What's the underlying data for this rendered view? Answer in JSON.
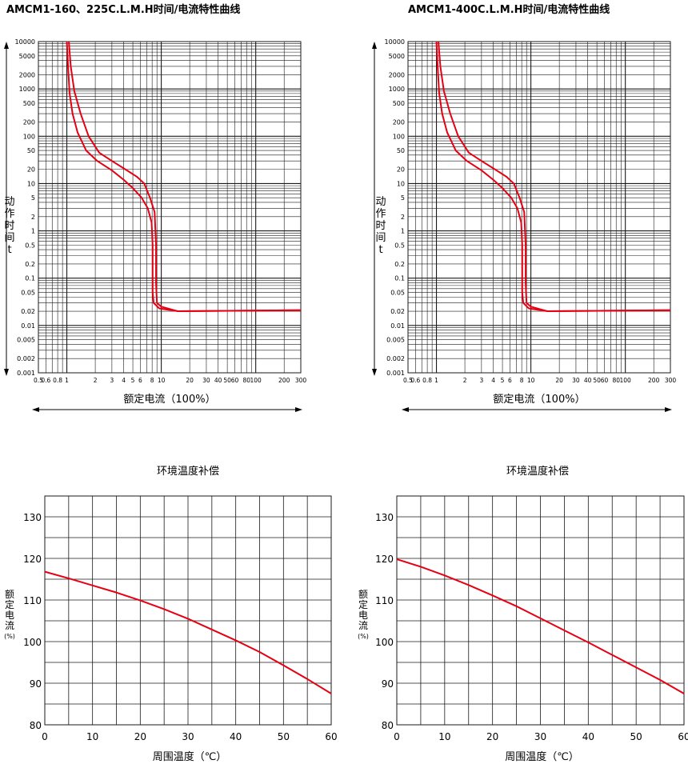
{
  "chart_data": [
    {
      "type": "line",
      "title": "AMCM1-160、225C.L.M.H时间/电流特性曲线",
      "xlabel": "额定电流（100%）",
      "ylabel": "动作时间t",
      "xscale": "log",
      "yscale": "log",
      "xlim": [
        0.5,
        300
      ],
      "ylim": [
        0.001,
        10000
      ],
      "x_ticks": [
        "0.5",
        "0.6",
        "0.8",
        "1",
        "2",
        "3",
        "4",
        "5",
        "6",
        "8",
        "10",
        "20",
        "30",
        "40",
        "50",
        "60",
        "80",
        "100",
        "200",
        "300"
      ],
      "y_ticks": [
        "10000",
        "5000",
        "2000",
        "1000",
        "500",
        "200",
        "100",
        "50",
        "20",
        "10",
        "5",
        "2",
        "1",
        "0.5",
        "0.2",
        "0.1",
        "0.05",
        "0.02",
        "0.01",
        "0.005",
        "0.002",
        "0.001"
      ],
      "grid": true,
      "series": [
        {
          "values": [
            [
              1.05,
              10000
            ],
            [
              1.1,
              3000
            ],
            [
              1.2,
              900
            ],
            [
              1.4,
              300
            ],
            [
              1.7,
              100
            ],
            [
              2.2,
              45
            ],
            [
              3,
              30
            ],
            [
              4,
              21
            ],
            [
              5.5,
              14
            ],
            [
              6.6,
              10
            ],
            [
              7.6,
              5
            ],
            [
              8.5,
              2.5
            ],
            [
              8.8,
              0.5
            ],
            [
              8.8,
              0.08
            ],
            [
              9,
              0.03
            ],
            [
              10,
              0.025
            ],
            [
              15,
              0.02
            ],
            [
              300,
              0.021
            ]
          ]
        },
        {
          "values": [
            [
              1,
              10000
            ],
            [
              1.03,
              3000
            ],
            [
              1.07,
              800
            ],
            [
              1.15,
              300
            ],
            [
              1.3,
              120
            ],
            [
              1.6,
              50
            ],
            [
              2.1,
              30
            ],
            [
              3,
              19
            ],
            [
              4,
              12
            ],
            [
              5,
              8
            ],
            [
              6.2,
              5
            ],
            [
              7.2,
              3
            ],
            [
              7.9,
              1.5
            ],
            [
              8.1,
              0.5
            ],
            [
              8.1,
              0.05
            ],
            [
              8.3,
              0.03
            ],
            [
              9.5,
              0.023
            ],
            [
              15,
              0.02
            ],
            [
              300,
              0.021
            ]
          ]
        }
      ],
      "curve_color": "#e60012"
    },
    {
      "type": "line",
      "title": "AMCM1-400C.L.M.H时间/电流特性曲线",
      "xlabel": "额定电流（100%）",
      "ylabel": "动作时间t",
      "xscale": "log",
      "yscale": "log",
      "xlim": [
        0.5,
        300
      ],
      "ylim": [
        0.001,
        10000
      ],
      "x_ticks": [
        "0.5",
        "0.6",
        "0.8",
        "1",
        "2",
        "3",
        "4",
        "5",
        "6",
        "8",
        "10",
        "20",
        "30",
        "40",
        "50",
        "60",
        "80",
        "100",
        "200",
        "300"
      ],
      "y_ticks": [
        "10000",
        "5000",
        "2000",
        "1000",
        "500",
        "200",
        "100",
        "50",
        "20",
        "10",
        "5",
        "2",
        "1",
        "0.5",
        "0.2",
        "0.1",
        "0.05",
        "0.02",
        "0.01",
        "0.005",
        "0.002",
        "0.001"
      ],
      "grid": true,
      "series": [
        {
          "values": [
            [
              1.05,
              10000
            ],
            [
              1.1,
              3000
            ],
            [
              1.2,
              900
            ],
            [
              1.4,
              300
            ],
            [
              1.7,
              100
            ],
            [
              2.2,
              45
            ],
            [
              3,
              30
            ],
            [
              4,
              21
            ],
            [
              5.5,
              14
            ],
            [
              6.6,
              10
            ],
            [
              7.6,
              5
            ],
            [
              8.5,
              2.5
            ],
            [
              8.8,
              0.5
            ],
            [
              8.8,
              0.08
            ],
            [
              9,
              0.03
            ],
            [
              10,
              0.025
            ],
            [
              15,
              0.02
            ],
            [
              300,
              0.021
            ]
          ]
        },
        {
          "values": [
            [
              1,
              10000
            ],
            [
              1.03,
              3000
            ],
            [
              1.07,
              800
            ],
            [
              1.15,
              300
            ],
            [
              1.3,
              120
            ],
            [
              1.6,
              50
            ],
            [
              2.1,
              30
            ],
            [
              3,
              19
            ],
            [
              4,
              12
            ],
            [
              5,
              8
            ],
            [
              6.2,
              5
            ],
            [
              7.2,
              3
            ],
            [
              7.9,
              1.5
            ],
            [
              8.1,
              0.5
            ],
            [
              8.1,
              0.05
            ],
            [
              8.3,
              0.03
            ],
            [
              9.5,
              0.023
            ],
            [
              15,
              0.02
            ],
            [
              300,
              0.021
            ]
          ]
        }
      ],
      "curve_color": "#e60012"
    },
    {
      "type": "line",
      "title": "环境温度补偿",
      "xlabel": "周围温度（℃）",
      "ylabel": "额定电流(%)",
      "xlim": [
        0,
        60
      ],
      "ylim": [
        80,
        135
      ],
      "x_ticks": [
        "0",
        "10",
        "20",
        "30",
        "40",
        "50",
        "60"
      ],
      "y_ticks": [
        "80",
        "90",
        "100",
        "110",
        "120",
        "130"
      ],
      "grid": true,
      "series": [
        {
          "x": [
            0,
            5,
            10,
            15,
            20,
            25,
            30,
            35,
            40,
            45,
            50,
            55,
            60
          ],
          "values": [
            116.8,
            115.2,
            113.5,
            111.8,
            109.9,
            107.8,
            105.5,
            102.9,
            100.3,
            97.5,
            94.3,
            91,
            87.5
          ]
        }
      ],
      "curve_color": "#e60012"
    },
    {
      "type": "line",
      "title": "环境温度补偿",
      "xlabel": "周围温度（℃）",
      "ylabel": "额定电流(%)",
      "xlim": [
        0,
        60
      ],
      "ylim": [
        80,
        135
      ],
      "x_ticks": [
        "0",
        "10",
        "20",
        "30",
        "40",
        "50",
        "60"
      ],
      "y_ticks": [
        "80",
        "90",
        "100",
        "110",
        "120",
        "130"
      ],
      "grid": true,
      "series": [
        {
          "x": [
            0,
            5,
            10,
            15,
            20,
            25,
            30,
            35,
            40,
            45,
            50,
            55,
            60
          ],
          "values": [
            119.8,
            118,
            115.9,
            113.6,
            111.1,
            108.5,
            105.6,
            102.7,
            99.8,
            96.8,
            93.8,
            90.8,
            87.5
          ]
        }
      ],
      "curve_color": "#e60012"
    }
  ]
}
